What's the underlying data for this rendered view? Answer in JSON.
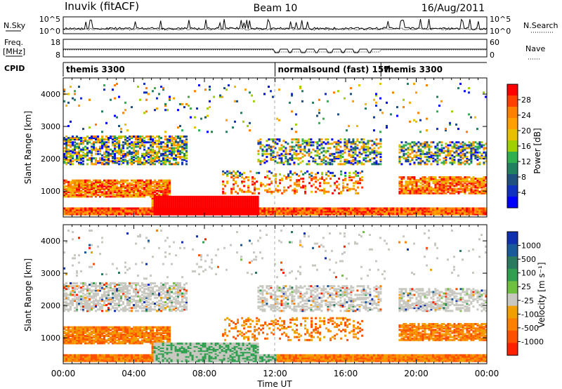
{
  "header": {
    "station": "Inuvik (fitACF)",
    "beam": "Beam 10",
    "date": "16/Aug/2011"
  },
  "noise_panel": {
    "left_label": "N.Sky",
    "right_label": "N.Search",
    "left_ticks": [
      "10^5",
      "10^0"
    ],
    "right_ticks": [
      "10^5",
      "10^0"
    ]
  },
  "freq_panel": {
    "left_label_line1": "Freq.",
    "left_label_line2": "[MHz]",
    "right_label": "Nave",
    "left_ticks": [
      "18",
      "8"
    ],
    "right_ticks": [
      "60",
      "0"
    ]
  },
  "cpid_panel": {
    "label": "CPID",
    "segments": [
      {
        "start_h": 0,
        "end_h": 12,
        "label": "themis 3300"
      },
      {
        "start_h": 12,
        "end_h": 18,
        "label": "normalsound (fast) 157"
      },
      {
        "start_h": 18,
        "end_h": 24,
        "label": "themis 3300"
      }
    ]
  },
  "chart_data": [
    {
      "type": "heatmap",
      "name": "power",
      "ylabel": "Slant Range [km]",
      "ylim": [
        200,
        4500
      ],
      "xlim_hours": [
        0,
        24
      ],
      "yticks": [
        1000,
        2000,
        3000,
        4000
      ],
      "colorbar_label": "Power [dB]",
      "colorbar_ticks": [
        "28",
        "24",
        "20",
        "16",
        "12",
        "8",
        "4"
      ],
      "colorbar_colors": [
        "#ff0000",
        "#ff4000",
        "#ff8000",
        "#ffa000",
        "#e8c000",
        "#a0d000",
        "#30b050",
        "#208060",
        "#205080",
        "#1030c0",
        "#0000ff"
      ]
    },
    {
      "type": "heatmap",
      "name": "velocity",
      "ylabel": "Slant Range [km]",
      "ylim": [
        200,
        4500
      ],
      "xlim_hours": [
        0,
        24
      ],
      "yticks": [
        1000,
        2000,
        3000,
        4000
      ],
      "colorbar_label": "Velocity [m s⁻¹]",
      "colorbar_ticks": [
        "1000",
        "500",
        "100",
        "25",
        "-25",
        "-100",
        "-500",
        "-1000"
      ],
      "colorbar_colors": [
        "#1030b0",
        "#1a5a9a",
        "#2a7a60",
        "#30a050",
        "#70c040",
        "#c8c8c0",
        "#f0a000",
        "#ff8000",
        "#ff5000",
        "#ff2000"
      ]
    }
  ],
  "xaxis": {
    "ticks": [
      "00:00",
      "04:00",
      "08:00",
      "12:00",
      "16:00",
      "20:00",
      "00:00"
    ],
    "label": "Time UT"
  }
}
